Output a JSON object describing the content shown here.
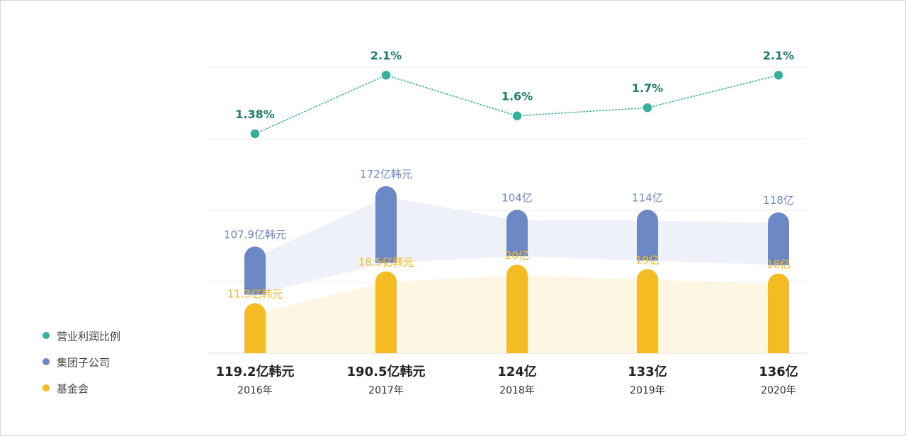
{
  "chart_data": {
    "type": "bar",
    "categories": [
      "2016年",
      "2017年",
      "2018年",
      "2019年",
      "2020年"
    ],
    "totals": [
      "119.2亿韩元",
      "190.5亿韩元",
      "124亿",
      "133亿",
      "136亿"
    ],
    "series": [
      {
        "name": "营业利润比例",
        "type": "line",
        "values": [
          1.38,
          2.1,
          1.6,
          1.7,
          2.1
        ],
        "labels": [
          "1.38%",
          "2.1%",
          "1.6%",
          "1.7%",
          "2.1%"
        ],
        "color": "#3aae9c",
        "label_color": "#1f7b6b"
      },
      {
        "name": "集团子公司",
        "type": "bar",
        "values": [
          107.9,
          172,
          104,
          114,
          118
        ],
        "labels": [
          "107.9亿韩元",
          "172亿韩元",
          "104亿",
          "114亿",
          "118亿"
        ],
        "color": "#6d89c5",
        "band_color": "#eef1f9"
      },
      {
        "name": "基金会",
        "type": "bar",
        "values": [
          11.3,
          18.5,
          20,
          19,
          18
        ],
        "labels": [
          "11.3亿韩元",
          "18.5亿韩元",
          "20亿",
          "19亿",
          "18亿"
        ],
        "color": "#f5bb23",
        "band_color": "#fdf6e3"
      }
    ],
    "grid": true,
    "legend_position": "bottom-left"
  }
}
